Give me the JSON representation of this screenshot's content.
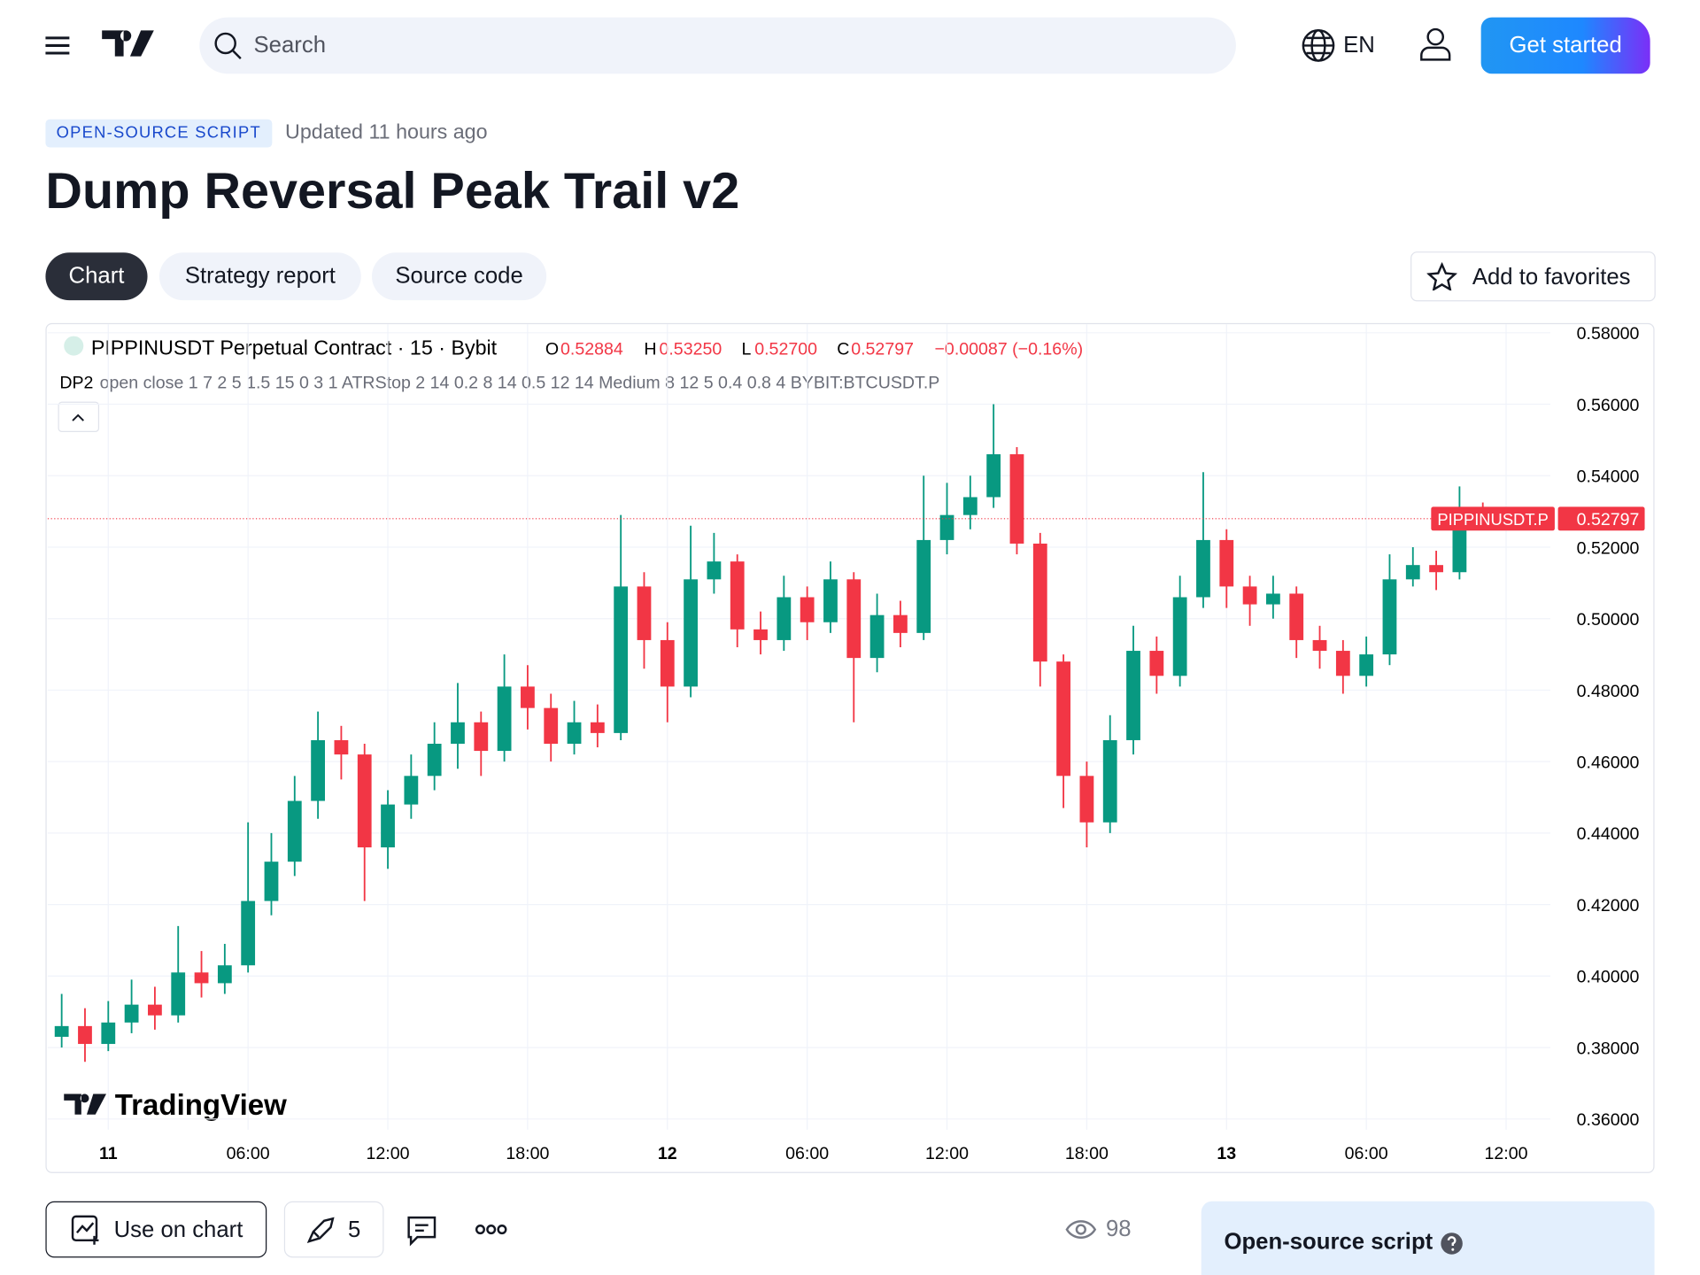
{
  "header": {
    "search": "Search",
    "language": "EN",
    "cta": "Get started"
  },
  "script": {
    "badge": "OPEN-SOURCE SCRIPT",
    "updated": "Updated 11 hours ago",
    "title": "Dump Reversal Peak Trail v2",
    "tabs": [
      "Chart",
      "Strategy report",
      "Source code"
    ],
    "favorite": "Add to favorites"
  },
  "legend": {
    "symbol": "PIPPINUSDT Perpetual Contract · 15 · Bybit",
    "o_key": "O",
    "o": "0.52884",
    "h_key": "H",
    "h": "0.53250",
    "l_key": "L",
    "l": "0.52700",
    "c_key": "C",
    "c": "0.52797",
    "change": "−0.00087 (−0.16%)",
    "indicator_name": "DP2",
    "indicator_args": "open close 1 7 2 5 1.5 15 0 3 1 ATRStop 2 14 0.2 8 14 0.5 12 14 Medium 8 12 5 0.4 0.8 4 BYBIT:BTCUSDT.P"
  },
  "watermark": "TradingView",
  "chart_data": {
    "type": "candlestick",
    "x": [
      -2,
      -1,
      0,
      1,
      2,
      3,
      4,
      5,
      6,
      7,
      8,
      9,
      10,
      11,
      12,
      13,
      14,
      15,
      16,
      17,
      18,
      19,
      20,
      21,
      22,
      23,
      24,
      25,
      26,
      27,
      28,
      29,
      30,
      31,
      32,
      33,
      34,
      35,
      36,
      37,
      38,
      39,
      40,
      41,
      42,
      43,
      44,
      45,
      46,
      47,
      48,
      49,
      50,
      51,
      52,
      53,
      54,
      55,
      56,
      57,
      58,
      59
    ],
    "open": [
      0.383,
      0.386,
      0.381,
      0.387,
      0.392,
      0.389,
      0.401,
      0.398,
      0.403,
      0.421,
      0.432,
      0.449,
      0.466,
      0.462,
      0.436,
      0.448,
      0.456,
      0.465,
      0.471,
      0.463,
      0.481,
      0.475,
      0.465,
      0.471,
      0.468,
      0.509,
      0.494,
      0.481,
      0.511,
      0.516,
      0.497,
      0.494,
      0.506,
      0.499,
      0.511,
      0.489,
      0.501,
      0.496,
      0.522,
      0.529,
      0.534,
      0.546,
      0.521,
      0.488,
      0.456,
      0.443,
      0.466,
      0.491,
      0.484,
      0.506,
      0.522,
      0.509,
      0.504,
      0.507,
      0.494,
      0.491,
      0.484,
      0.49,
      0.511,
      0.515,
      0.513,
      0.52884
    ],
    "high": [
      0.395,
      0.391,
      0.393,
      0.399,
      0.397,
      0.414,
      0.407,
      0.409,
      0.443,
      0.44,
      0.456,
      0.474,
      0.47,
      0.465,
      0.452,
      0.462,
      0.471,
      0.482,
      0.474,
      0.49,
      0.487,
      0.479,
      0.477,
      0.476,
      0.529,
      0.513,
      0.499,
      0.526,
      0.524,
      0.518,
      0.502,
      0.512,
      0.509,
      0.516,
      0.513,
      0.507,
      0.505,
      0.54,
      0.538,
      0.54,
      0.56,
      0.548,
      0.524,
      0.49,
      0.46,
      0.473,
      0.498,
      0.495,
      0.512,
      0.541,
      0.525,
      0.512,
      0.512,
      0.509,
      0.498,
      0.494,
      0.495,
      0.518,
      0.52,
      0.519,
      0.537,
      0.5325
    ],
    "low": [
      0.38,
      0.376,
      0.379,
      0.384,
      0.385,
      0.387,
      0.394,
      0.395,
      0.401,
      0.417,
      0.428,
      0.444,
      0.455,
      0.421,
      0.43,
      0.444,
      0.452,
      0.458,
      0.456,
      0.46,
      0.469,
      0.46,
      0.462,
      0.464,
      0.466,
      0.486,
      0.471,
      0.478,
      0.507,
      0.492,
      0.49,
      0.491,
      0.494,
      0.496,
      0.471,
      0.485,
      0.492,
      0.494,
      0.518,
      0.525,
      0.531,
      0.518,
      0.481,
      0.447,
      0.436,
      0.44,
      0.462,
      0.479,
      0.481,
      0.503,
      0.503,
      0.498,
      0.5,
      0.489,
      0.486,
      0.479,
      0.481,
      0.487,
      0.509,
      0.508,
      0.511,
      0.527
    ],
    "close": [
      0.386,
      0.381,
      0.387,
      0.392,
      0.389,
      0.401,
      0.398,
      0.403,
      0.421,
      0.432,
      0.449,
      0.466,
      0.462,
      0.436,
      0.448,
      0.456,
      0.465,
      0.471,
      0.463,
      0.481,
      0.475,
      0.465,
      0.471,
      0.468,
      0.509,
      0.494,
      0.481,
      0.511,
      0.516,
      0.497,
      0.494,
      0.506,
      0.499,
      0.511,
      0.489,
      0.501,
      0.496,
      0.522,
      0.529,
      0.534,
      0.546,
      0.521,
      0.488,
      0.456,
      0.443,
      0.466,
      0.491,
      0.484,
      0.506,
      0.522,
      0.509,
      0.504,
      0.507,
      0.494,
      0.491,
      0.484,
      0.49,
      0.511,
      0.515,
      0.513,
      0.52884,
      0.52797
    ],
    "up_color": "#089981",
    "down_color": "#f23645",
    "xlim": [
      -2.6,
      61.9
    ],
    "xticks": [
      {
        "value": 0,
        "label": "11"
      },
      {
        "value": 6,
        "label": "06:00"
      },
      {
        "value": 12,
        "label": "12:00"
      },
      {
        "value": 18,
        "label": "18:00"
      },
      {
        "value": 24,
        "label": "12"
      },
      {
        "value": 30,
        "label": "06:00"
      },
      {
        "value": 36,
        "label": "12:00"
      },
      {
        "value": 42,
        "label": "18:00"
      },
      {
        "value": 48,
        "label": "13"
      },
      {
        "value": 54,
        "label": "06:00"
      },
      {
        "value": 60,
        "label": "12:00"
      }
    ],
    "ylim": [
      0.357,
      0.5824
    ],
    "yticks": [
      {
        "value": 0.36,
        "label": "0.36000"
      },
      {
        "value": 0.38,
        "label": "0.38000"
      },
      {
        "value": 0.4,
        "label": "0.40000"
      },
      {
        "value": 0.42,
        "label": "0.42000"
      },
      {
        "value": 0.44,
        "label": "0.44000"
      },
      {
        "value": 0.46,
        "label": "0.46000"
      },
      {
        "value": 0.48,
        "label": "0.48000"
      },
      {
        "value": 0.5,
        "label": "0.50000"
      },
      {
        "value": 0.52,
        "label": "0.52000"
      },
      {
        "value": 0.54,
        "label": "0.54000"
      },
      {
        "value": 0.56,
        "label": "0.56000"
      },
      {
        "value": 0.58,
        "label": "0.58000"
      }
    ],
    "grid": true,
    "last_price": {
      "label": "PIPPINUSDT.P",
      "value": 0.52797
    }
  },
  "actions": {
    "use": "Use on chart",
    "boosts": "5",
    "views": "98",
    "sidebar_title": "Open-source script"
  }
}
